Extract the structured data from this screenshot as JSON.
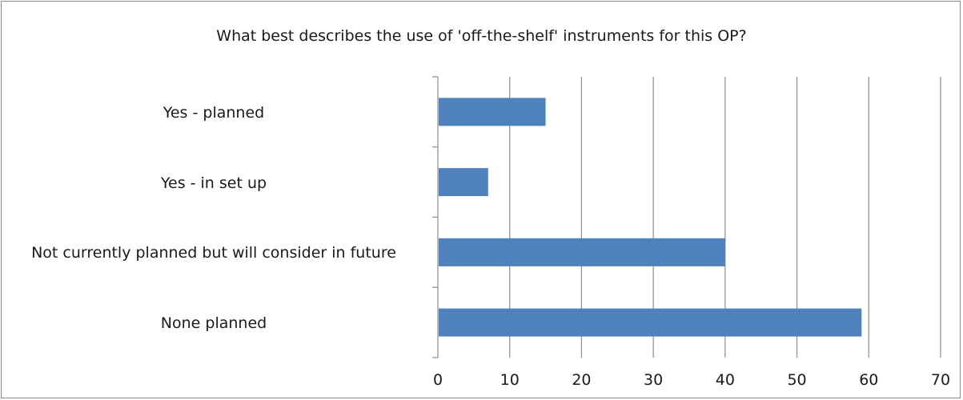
{
  "chart_data": {
    "type": "bar",
    "orientation": "horizontal",
    "title": "What best describes the use of 'off-the-shelf' instruments for this OP?",
    "xlabel": "",
    "ylabel": "",
    "categories": [
      "Yes - planned",
      "Yes - in set up",
      "Not currently planned but will consider in future",
      "None planned"
    ],
    "values": [
      15,
      7,
      40,
      59
    ],
    "xlim": [
      0,
      70
    ],
    "xticks": [
      0,
      10,
      20,
      30,
      40,
      50,
      60,
      70
    ],
    "xtick_labels": [
      "0",
      "10",
      "20",
      "30",
      "40",
      "50",
      "60",
      "70"
    ],
    "grid": "vertical",
    "legend": "none",
    "bar_color": "#4f81bd",
    "grid_color": "#8c8c8c"
  }
}
